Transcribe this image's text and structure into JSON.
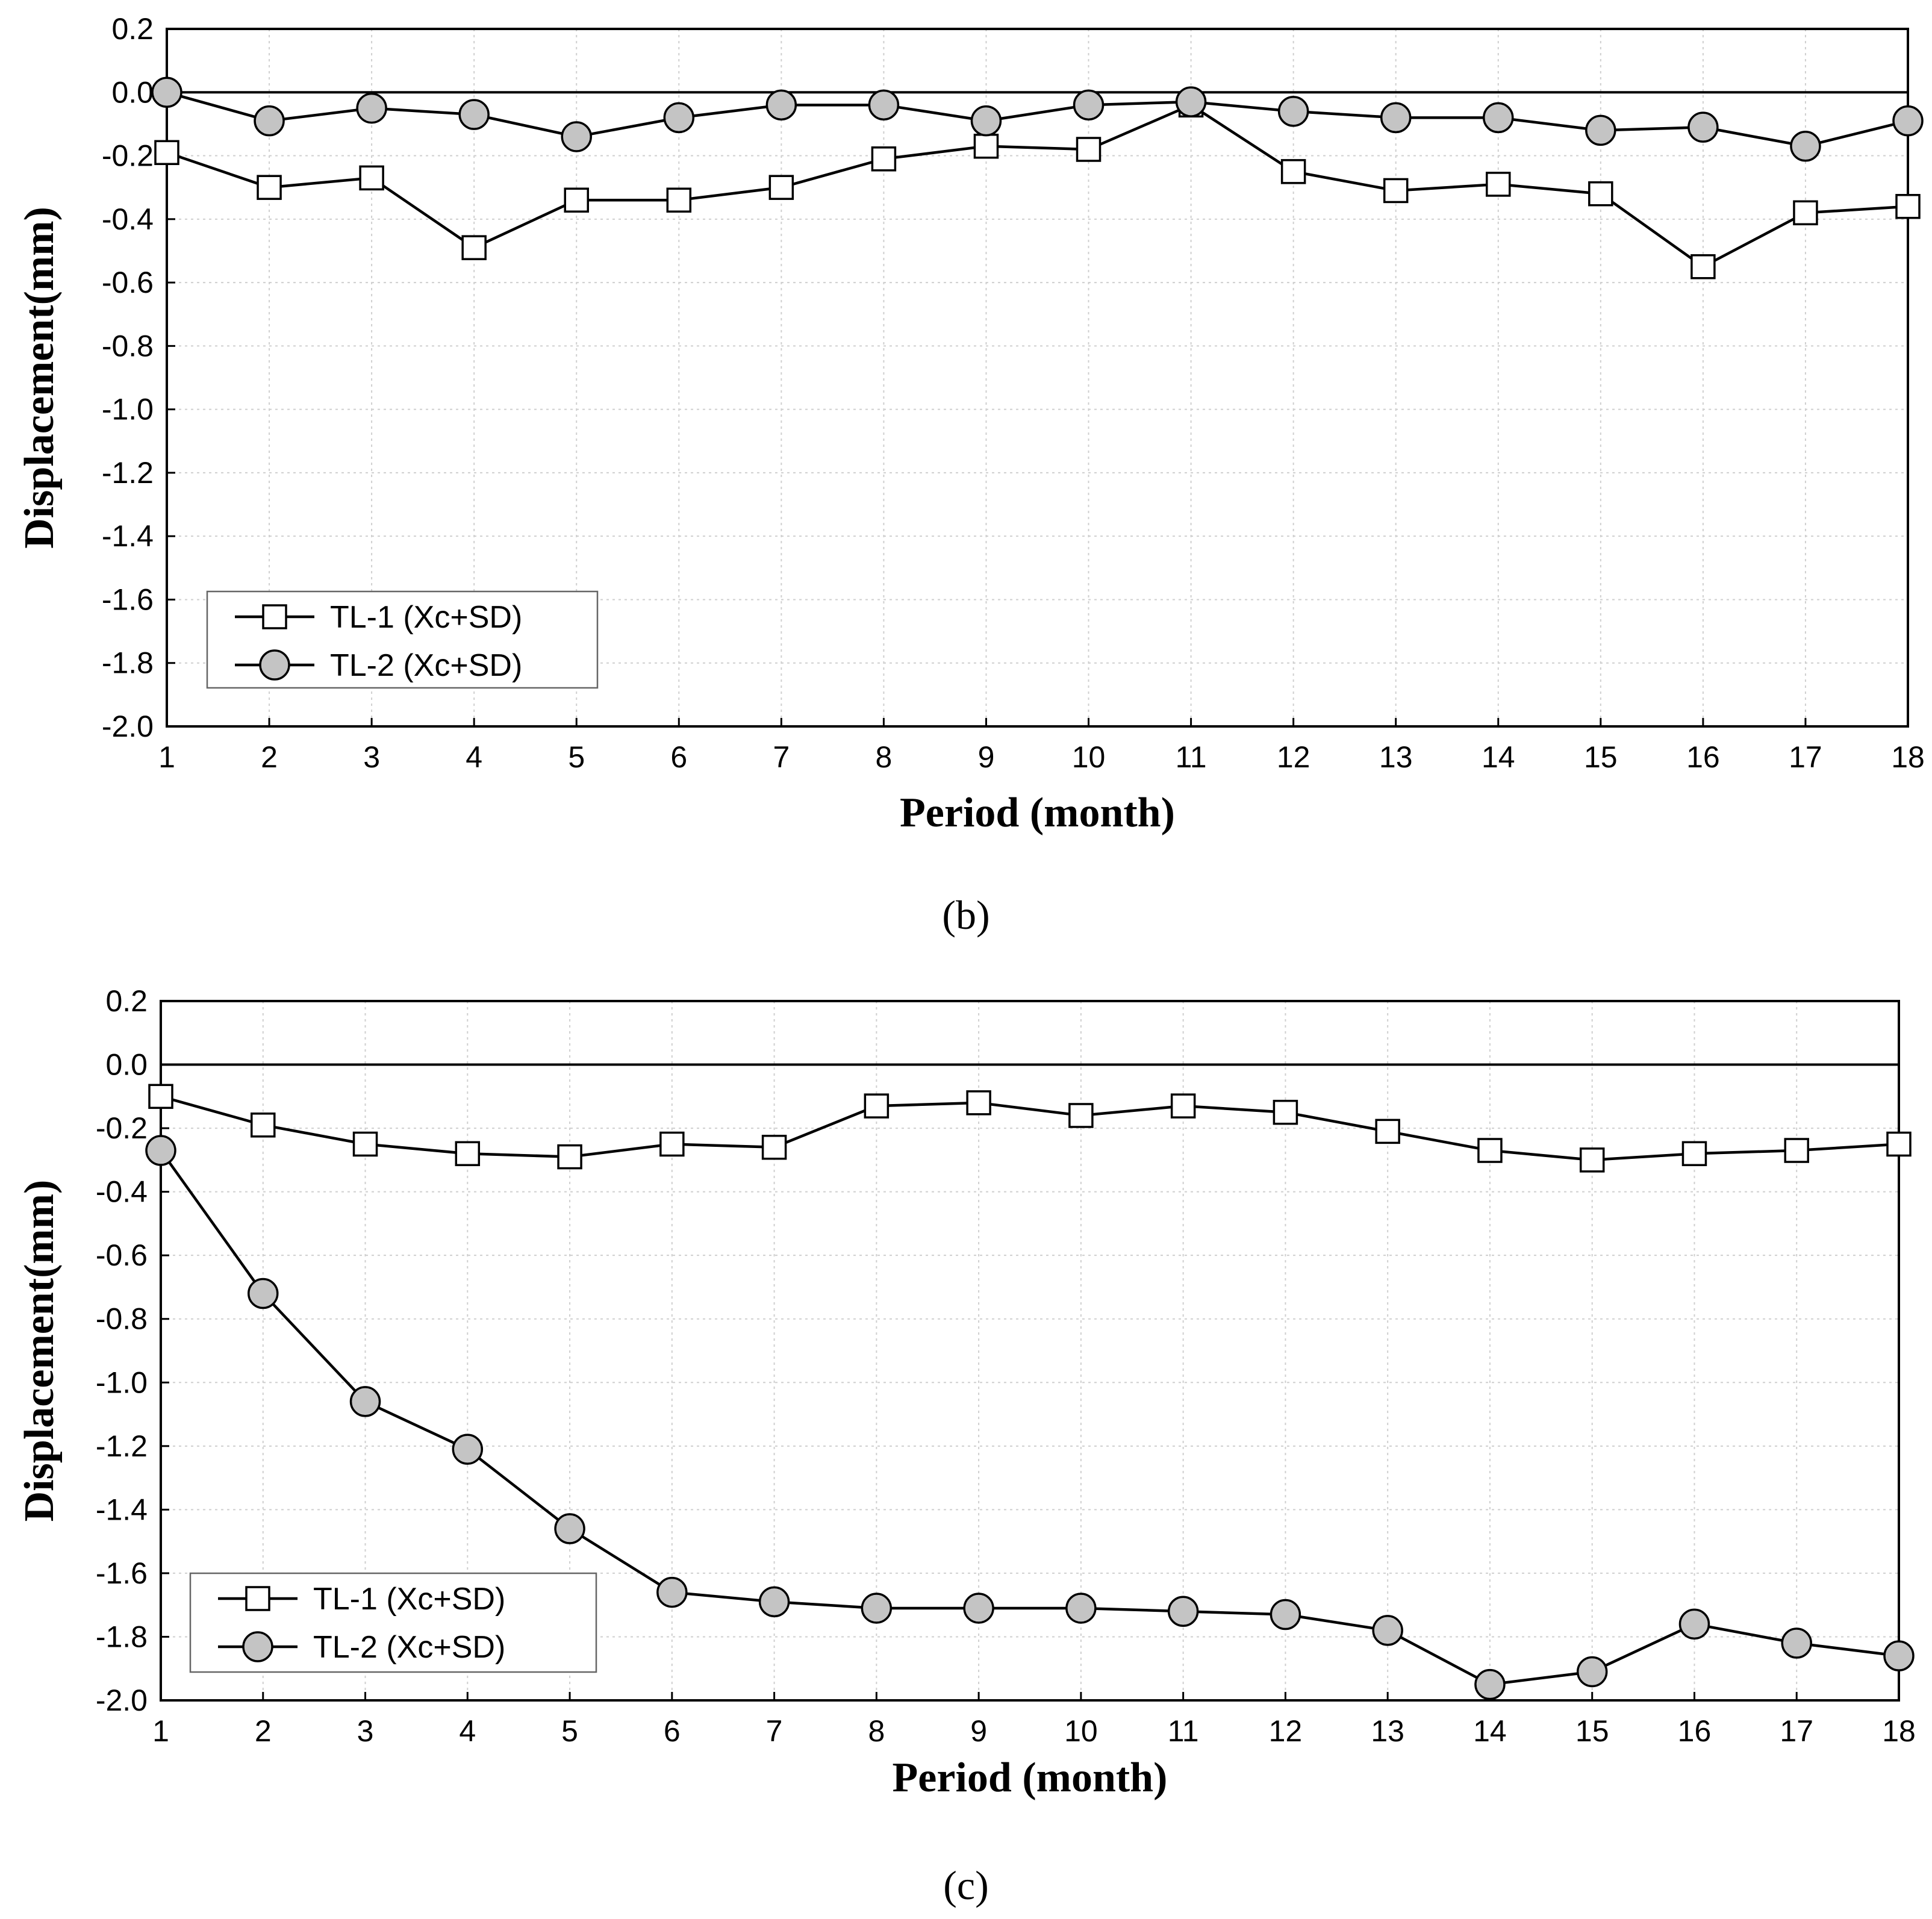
{
  "chart_data": [
    {
      "type": "line",
      "panel_label": "(b)",
      "xlabel": "Period (month)",
      "ylabel": "Displacement(mm)",
      "x": [
        1,
        2,
        3,
        4,
        5,
        6,
        7,
        8,
        9,
        10,
        11,
        12,
        13,
        14,
        15,
        16,
        17,
        18
      ],
      "xlim": [
        1,
        18
      ],
      "ylim": [
        -2.0,
        0.2
      ],
      "yticks": [
        "0.2",
        "0.0",
        "-0.2",
        "-0.4",
        "-0.6",
        "-0.8",
        "-1.0",
        "-1.2",
        "-1.4",
        "-1.6",
        "-1.8",
        "-2.0"
      ],
      "ytick_values": [
        0.2,
        0.0,
        -0.2,
        -0.4,
        -0.6,
        -0.8,
        -1.0,
        -1.2,
        -1.4,
        -1.6,
        -1.8,
        -2.0
      ],
      "xticks": [
        "1",
        "2",
        "3",
        "4",
        "5",
        "6",
        "7",
        "8",
        "9",
        "10",
        "11",
        "12",
        "13",
        "14",
        "15",
        "16",
        "17",
        "18"
      ],
      "grid": true,
      "legend_position": "bottom-left",
      "series": [
        {
          "name": "TL-1 (Xc+SD)",
          "marker": "square",
          "values": [
            -0.19,
            -0.3,
            -0.27,
            -0.49,
            -0.34,
            -0.34,
            -0.3,
            -0.21,
            -0.17,
            -0.18,
            -0.04,
            -0.25,
            -0.31,
            -0.29,
            -0.32,
            -0.55,
            -0.38,
            -0.36
          ]
        },
        {
          "name": "TL-2 (Xc+SD)",
          "marker": "circle",
          "values": [
            0.0,
            -0.09,
            -0.05,
            -0.07,
            -0.14,
            -0.08,
            -0.04,
            -0.04,
            -0.09,
            -0.04,
            -0.03,
            -0.06,
            -0.08,
            -0.08,
            -0.12,
            -0.11,
            -0.17,
            -0.09
          ]
        }
      ]
    },
    {
      "type": "line",
      "panel_label": "(c)",
      "xlabel": "Period (month)",
      "ylabel": "Displacement(mm)",
      "x": [
        1,
        2,
        3,
        4,
        5,
        6,
        7,
        8,
        9,
        10,
        11,
        12,
        13,
        14,
        15,
        16,
        17,
        18
      ],
      "xlim": [
        1,
        18
      ],
      "ylim": [
        -2.0,
        0.2
      ],
      "yticks": [
        "0.2",
        "0.0",
        "-0.2",
        "-0.4",
        "-0.6",
        "-0.8",
        "-1.0",
        "-1.2",
        "-1.4",
        "-1.6",
        "-1.8",
        "-2.0"
      ],
      "ytick_values": [
        0.2,
        0.0,
        -0.2,
        -0.4,
        -0.6,
        -0.8,
        -1.0,
        -1.2,
        -1.4,
        -1.6,
        -1.8,
        -2.0
      ],
      "xticks": [
        "1",
        "2",
        "3",
        "4",
        "5",
        "6",
        "7",
        "8",
        "9",
        "10",
        "11",
        "12",
        "13",
        "14",
        "15",
        "16",
        "17",
        "18"
      ],
      "grid": true,
      "legend_position": "bottom-left",
      "series": [
        {
          "name": "TL-1 (Xc+SD)",
          "marker": "square",
          "values": [
            -0.1,
            -0.19,
            -0.25,
            -0.28,
            -0.29,
            -0.25,
            -0.26,
            -0.13,
            -0.12,
            -0.16,
            -0.13,
            -0.15,
            -0.21,
            -0.27,
            -0.3,
            -0.28,
            -0.27,
            -0.25
          ]
        },
        {
          "name": "TL-2 (Xc+SD)",
          "marker": "circle",
          "values": [
            -0.27,
            -0.72,
            -1.06,
            -1.21,
            -1.46,
            -1.66,
            -1.69,
            -1.71,
            -1.71,
            -1.71,
            -1.72,
            -1.73,
            -1.78,
            -1.95,
            -1.91,
            -1.76,
            -1.82,
            -1.86
          ]
        }
      ]
    }
  ]
}
